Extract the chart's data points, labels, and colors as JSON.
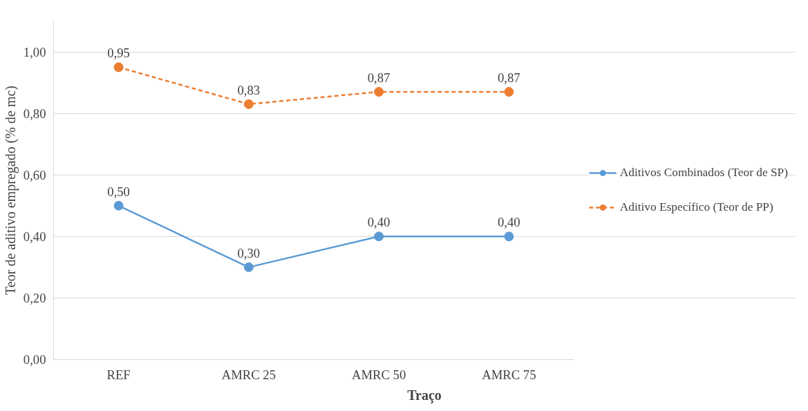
{
  "chart_data": {
    "type": "line",
    "xlabel": "Traço",
    "ylabel": "Teor de aditivo empregado (% de mc)",
    "categories": [
      "REF",
      "AMRC 25",
      "AMRC 50",
      "AMRC 75"
    ],
    "series": [
      {
        "name": "Aditivos Combinados (Teor de SP)",
        "color": "#5b9bd5",
        "line_style": "solid",
        "values": [
          0.5,
          0.3,
          0.4,
          0.4
        ],
        "value_labels": [
          "0,50",
          "0,30",
          "0,40",
          "0,40"
        ]
      },
      {
        "name": "Aditivo Específico (Teor de PP)",
        "color": "#ed7d31",
        "line_style": "dashed",
        "values": [
          0.95,
          0.83,
          0.87,
          0.87
        ],
        "value_labels": [
          "0,95",
          "0,83",
          "0,87",
          "0,87"
        ]
      }
    ],
    "ylim": [
      0,
      1.1
    ],
    "yticks": [
      {
        "value": 0,
        "label": "0,00"
      },
      {
        "value": 0.2,
        "label": "0,20"
      },
      {
        "value": 0.4,
        "label": "0,40"
      },
      {
        "value": 0.6,
        "label": "0,60"
      },
      {
        "value": 0.8,
        "label": "0,80"
      },
      {
        "value": 1.0,
        "label": "1,00"
      }
    ],
    "grid": "y",
    "legend": "right",
    "marker": "circle"
  }
}
